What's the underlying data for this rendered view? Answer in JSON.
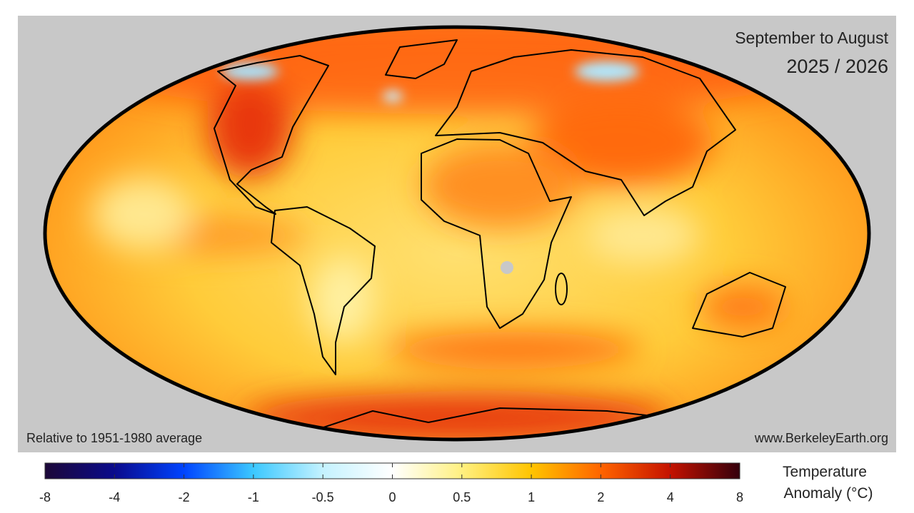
{
  "header": {
    "period": "September to August",
    "years": "2025 / 2026"
  },
  "footer": {
    "baseline": "Relative to 1951-1980 average",
    "source": "www.BerkeleyEarth.org"
  },
  "colorbar": {
    "title": [
      "Temperature",
      "Anomaly  (°C)"
    ],
    "ticks": [
      -8,
      -4,
      -2,
      -1,
      -0.5,
      0,
      0.5,
      1,
      2,
      4,
      8
    ],
    "colors": [
      "#1c0838",
      "#0a0a8c",
      "#0044ff",
      "#3cc8ff",
      "#c4f2ff",
      "#ffffff",
      "#fff080",
      "#ffc400",
      "#ff6400",
      "#c41200",
      "#34000c"
    ]
  }
}
